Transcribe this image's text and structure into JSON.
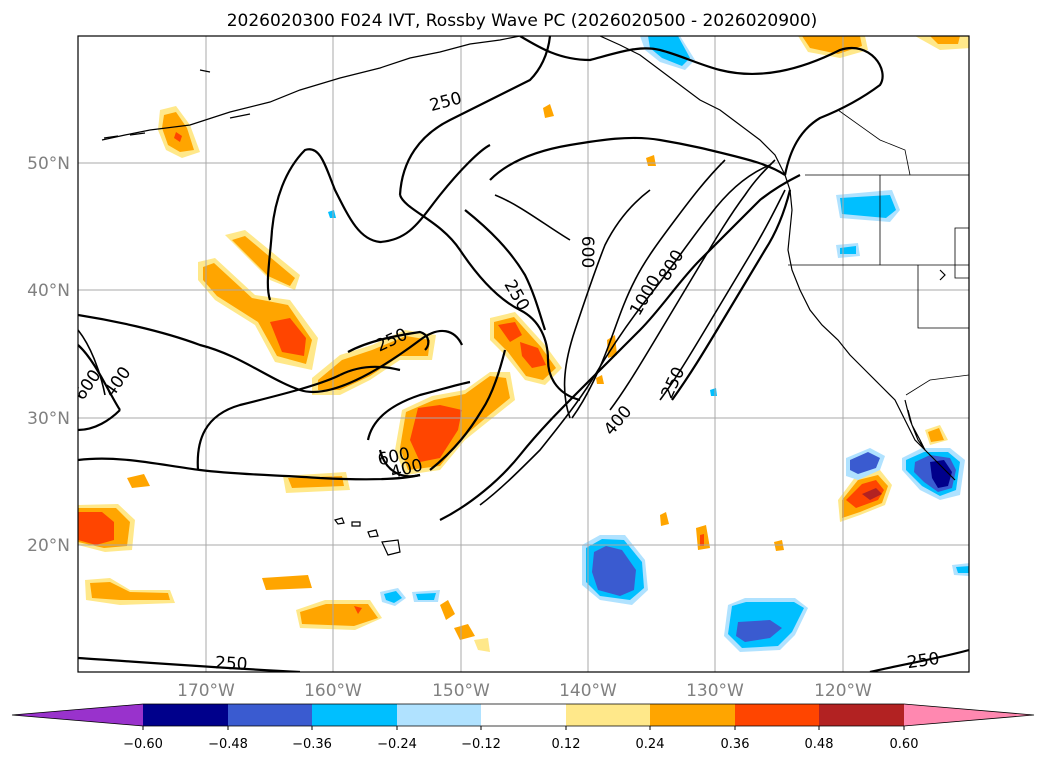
{
  "title": "2026020300 F024 IVT, Rossby Wave PC (2026020500 - 2026020900)",
  "lat_ticks": [
    "50°N",
    "40°N",
    "30°N",
    "20°N"
  ],
  "lon_ticks": [
    "170°W",
    "160°W",
    "150°W",
    "140°W",
    "130°W",
    "120°W"
  ],
  "colorbar": {
    "ticks": [
      "−0.60",
      "−0.48",
      "−0.36",
      "−0.24",
      "−0.12",
      "0.12",
      "0.24",
      "0.36",
      "0.48",
      "0.60"
    ],
    "colors": {
      "under": "#9932cc",
      "c1": "#00008b",
      "c2": "#3a5bd0",
      "c3": "#00bfff",
      "c4": "#b0e2ff",
      "c5": "#ffffff",
      "c6": "#ffe88a",
      "c7": "#ffa500",
      "c8": "#ff4500",
      "c9": "#b22222",
      "over": "#ff88b0"
    }
  },
  "contour_labels": {
    "l250a": "250",
    "l250b": "250",
    "l250c": "250",
    "l250d": "250",
    "l250e": "250",
    "l250f": "250",
    "l400a": "400",
    "l400b": "400",
    "l400c": "400",
    "l600a": "600",
    "l600b": "600",
    "l600c": "600",
    "l800": "800",
    "l1000": "1000"
  }
}
